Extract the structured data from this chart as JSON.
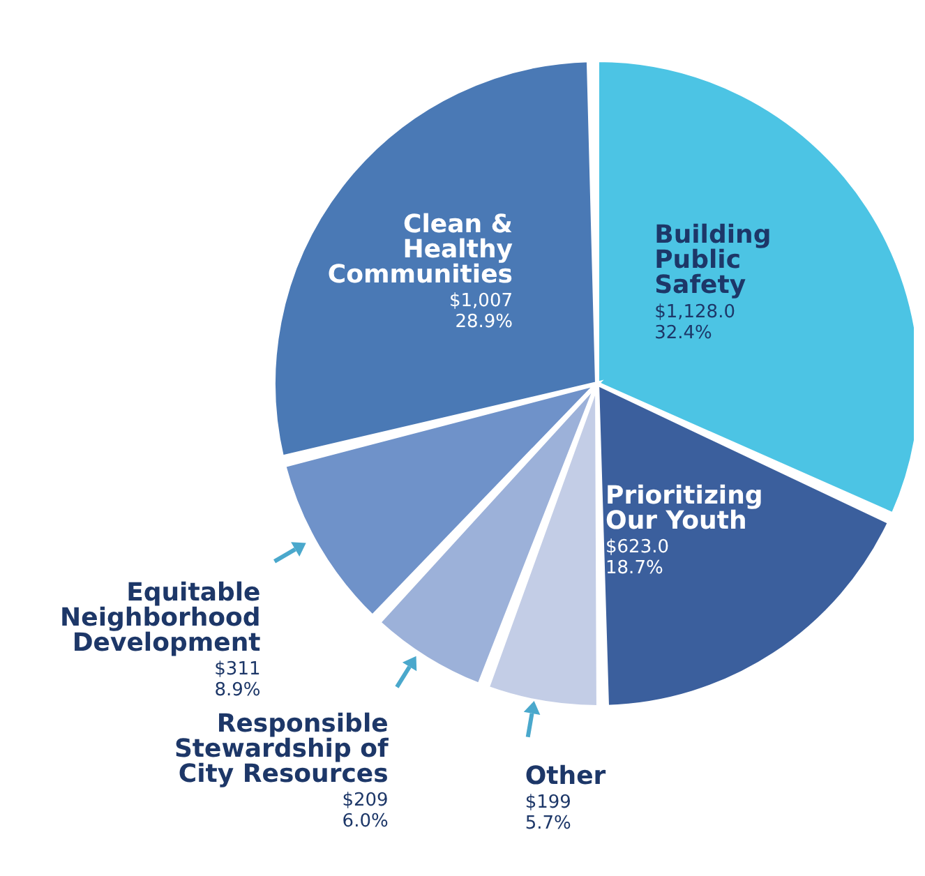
{
  "chart_data": {
    "type": "pie",
    "categories": [
      "Building Public Safety",
      "Prioritizing Our Youth",
      "Other",
      "Responsible Stewardship of City Resources",
      "Equitable Neighborhood Development",
      "Clean & Healthy Communities"
    ],
    "values": [
      1128.0,
      623.0,
      199,
      209,
      311,
      1007
    ],
    "value_labels": [
      "$1,128.0\n32.4%",
      "$623.0\n18.7%",
      "$199\n5.7%",
      "$209\n6.0%",
      "$311\n8.9%",
      "$1,007\n28.9%"
    ],
    "colors": [
      "#4cc4e4",
      "#3b5f9d",
      "#c3cde6",
      "#9cb1d9",
      "#6f92c9",
      "#4a79b5"
    ]
  }
}
